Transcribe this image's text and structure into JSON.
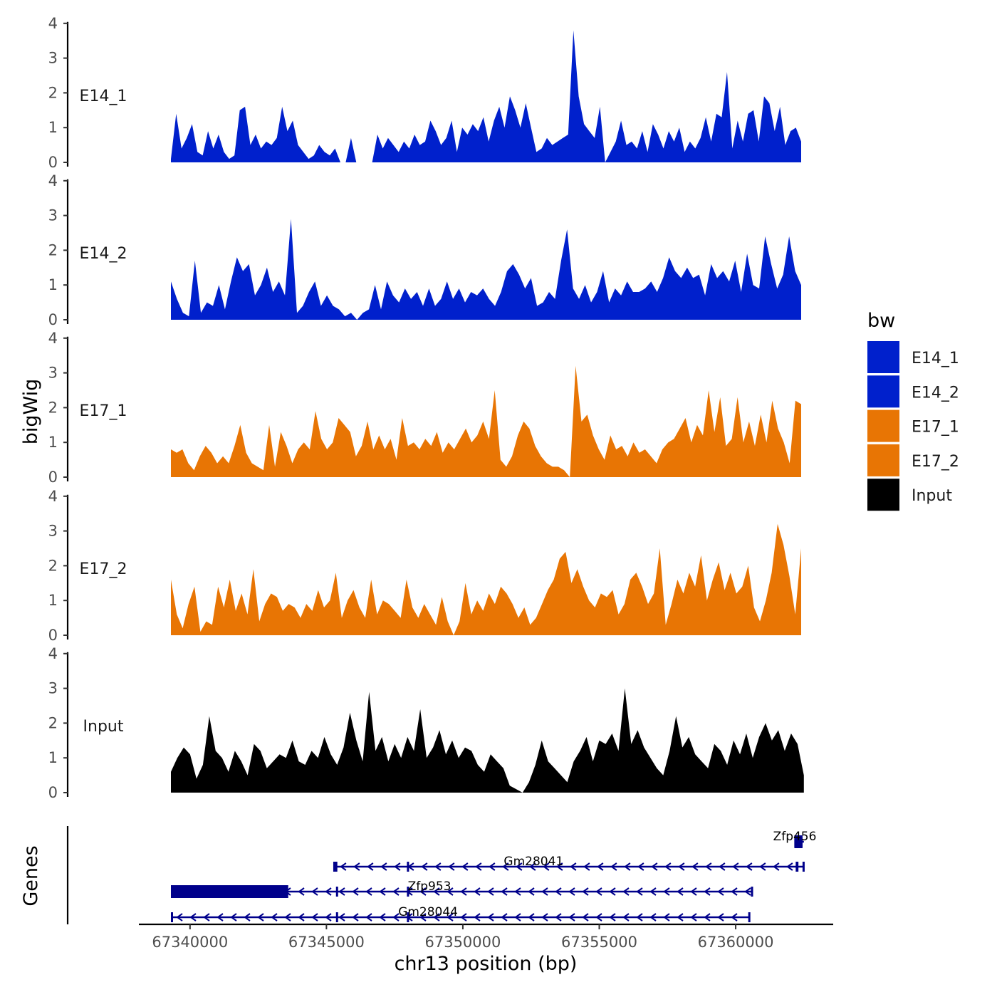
{
  "chart_data": {
    "type": "area",
    "y_axis_title": "bigWig",
    "x_axis_title": "chr13 position (bp)",
    "genes_axis_title": "Genes",
    "x_range": [
      67338500,
      67363500
    ],
    "y_range": [
      0,
      4
    ],
    "y_ticks": [
      "0",
      "1",
      "2",
      "3",
      "4"
    ],
    "x_ticks": [
      {
        "value": 67340000,
        "label": "67340000"
      },
      {
        "value": 67345000,
        "label": "67345000"
      },
      {
        "value": 67350000,
        "label": "67350000"
      },
      {
        "value": 67355000,
        "label": "67355000"
      },
      {
        "value": 67360000,
        "label": "67360000"
      }
    ],
    "legend": {
      "title": "bw",
      "entries": [
        {
          "name": "E14_1",
          "color": "#0020cc"
        },
        {
          "name": "E14_2",
          "color": "#0020cc"
        },
        {
          "name": "E17_1",
          "color": "#e87504"
        },
        {
          "name": "E17_2",
          "color": "#e87504"
        },
        {
          "name": "Input",
          "color": "#000000"
        }
      ]
    },
    "tracks": [
      {
        "name": "E14_1",
        "color": "#0020cc",
        "start": 67339300,
        "end": 67362400,
        "values": [
          0.1,
          1.4,
          0.4,
          0.7,
          1.1,
          0.3,
          0.2,
          0.9,
          0.4,
          0.8,
          0.3,
          0.1,
          0.2,
          1.5,
          1.6,
          0.5,
          0.8,
          0.4,
          0.6,
          0.5,
          0.7,
          1.6,
          0.9,
          1.2,
          0.5,
          0.3,
          0.1,
          0.2,
          0.5,
          0.3,
          0.2,
          0.4,
          0.0,
          0.0,
          0.7,
          0.0,
          0.0,
          0.0,
          0.0,
          0.8,
          0.4,
          0.7,
          0.5,
          0.3,
          0.6,
          0.4,
          0.8,
          0.5,
          0.6,
          1.2,
          0.9,
          0.5,
          0.7,
          1.2,
          0.3,
          1.0,
          0.8,
          1.1,
          0.9,
          1.3,
          0.6,
          1.2,
          1.6,
          1.0,
          1.9,
          1.5,
          1.0,
          1.7,
          1.0,
          0.3,
          0.4,
          0.7,
          0.5,
          0.6,
          0.7,
          0.8,
          3.8,
          1.9,
          1.1,
          0.9,
          0.7,
          1.6,
          0.0,
          0.3,
          0.6,
          1.2,
          0.5,
          0.6,
          0.4,
          0.9,
          0.3,
          1.1,
          0.8,
          0.4,
          0.9,
          0.6,
          1.0,
          0.3,
          0.6,
          0.4,
          0.7,
          1.3,
          0.6,
          1.4,
          1.3,
          2.6,
          0.4,
          1.2,
          0.6,
          1.4,
          1.5,
          0.6,
          1.9,
          1.7,
          0.9,
          1.6,
          0.5,
          0.9,
          1.0,
          0.6
        ]
      },
      {
        "name": "E14_2",
        "color": "#0020cc",
        "start": 67339300,
        "end": 67362400,
        "values": [
          1.1,
          0.6,
          0.2,
          0.1,
          1.7,
          0.2,
          0.5,
          0.4,
          1.0,
          0.3,
          1.1,
          1.8,
          1.4,
          1.6,
          0.7,
          1.0,
          1.5,
          0.8,
          1.1,
          0.7,
          2.9,
          0.2,
          0.4,
          0.8,
          1.1,
          0.4,
          0.7,
          0.4,
          0.3,
          0.1,
          0.2,
          0.0,
          0.2,
          0.3,
          1.0,
          0.3,
          1.1,
          0.7,
          0.5,
          0.9,
          0.6,
          0.8,
          0.4,
          0.9,
          0.4,
          0.6,
          1.1,
          0.6,
          0.9,
          0.5,
          0.8,
          0.7,
          0.9,
          0.6,
          0.4,
          0.8,
          1.4,
          1.6,
          1.3,
          0.9,
          1.2,
          0.4,
          0.5,
          0.8,
          0.6,
          1.7,
          2.6,
          0.9,
          0.6,
          1.0,
          0.5,
          0.8,
          1.4,
          0.5,
          0.9,
          0.7,
          1.1,
          0.8,
          0.8,
          0.9,
          1.1,
          0.8,
          1.2,
          1.8,
          1.4,
          1.2,
          1.5,
          1.2,
          1.3,
          0.7,
          1.6,
          1.2,
          1.4,
          1.1,
          1.7,
          0.8,
          1.9,
          1.0,
          0.9,
          2.4,
          1.6,
          0.9,
          1.3,
          2.4,
          1.4,
          1.0
        ]
      },
      {
        "name": "E17_1",
        "color": "#e87504",
        "start": 67339300,
        "end": 67362400,
        "values": [
          0.8,
          0.7,
          0.8,
          0.4,
          0.2,
          0.6,
          0.9,
          0.7,
          0.4,
          0.6,
          0.4,
          0.9,
          1.5,
          0.7,
          0.4,
          0.3,
          0.2,
          1.5,
          0.3,
          1.3,
          0.9,
          0.4,
          0.8,
          1.0,
          0.8,
          1.9,
          1.1,
          0.8,
          1.0,
          1.7,
          1.5,
          1.3,
          0.6,
          0.9,
          1.6,
          0.8,
          1.2,
          0.8,
          1.1,
          0.5,
          1.7,
          0.9,
          1.0,
          0.8,
          1.1,
          0.9,
          1.3,
          0.7,
          1.0,
          0.8,
          1.1,
          1.4,
          1.0,
          1.2,
          1.6,
          1.1,
          2.5,
          0.5,
          0.3,
          0.6,
          1.2,
          1.6,
          1.4,
          0.9,
          0.6,
          0.4,
          0.3,
          0.3,
          0.2,
          0.0,
          3.2,
          1.6,
          1.8,
          1.2,
          0.8,
          0.5,
          1.2,
          0.8,
          0.9,
          0.6,
          1.0,
          0.7,
          0.8,
          0.6,
          0.4,
          0.8,
          1.0,
          1.1,
          1.4,
          1.7,
          1.0,
          1.5,
          1.2,
          2.5,
          1.3,
          2.3,
          0.9,
          1.1,
          2.3,
          1.0,
          1.6,
          0.9,
          1.8,
          1.0,
          2.2,
          1.4,
          1.0,
          0.4,
          2.2,
          2.1
        ]
      },
      {
        "name": "E17_2",
        "color": "#e87504",
        "start": 67339300,
        "end": 67362400,
        "values": [
          1.6,
          0.6,
          0.2,
          0.9,
          1.4,
          0.1,
          0.4,
          0.3,
          1.4,
          0.8,
          1.6,
          0.7,
          1.2,
          0.6,
          1.9,
          0.4,
          0.9,
          1.2,
          1.1,
          0.7,
          0.9,
          0.8,
          0.5,
          0.9,
          0.7,
          1.3,
          0.8,
          1.0,
          1.8,
          0.5,
          1.0,
          1.3,
          0.8,
          0.5,
          1.6,
          0.6,
          1.0,
          0.9,
          0.7,
          0.5,
          1.6,
          0.8,
          0.5,
          0.9,
          0.6,
          0.3,
          1.1,
          0.4,
          0.0,
          0.4,
          1.5,
          0.6,
          1.0,
          0.7,
          1.2,
          0.9,
          1.4,
          1.2,
          0.9,
          0.5,
          0.8,
          0.3,
          0.5,
          0.9,
          1.3,
          1.6,
          2.2,
          2.4,
          1.5,
          1.9,
          1.4,
          1.0,
          0.8,
          1.2,
          1.1,
          1.3,
          0.6,
          0.9,
          1.6,
          1.8,
          1.4,
          0.9,
          1.2,
          2.5,
          0.3,
          0.9,
          1.6,
          1.2,
          1.8,
          1.4,
          2.3,
          1.0,
          1.6,
          2.1,
          1.3,
          1.8,
          1.2,
          1.4,
          2.0,
          0.8,
          0.4,
          1.0,
          1.8,
          3.2,
          2.6,
          1.7,
          0.6,
          2.5
        ]
      },
      {
        "name": "Input",
        "color": "#000000",
        "start": 67339300,
        "end": 67362500,
        "values": [
          0.6,
          1.0,
          1.3,
          1.1,
          0.4,
          0.8,
          2.2,
          1.2,
          1.0,
          0.6,
          1.2,
          0.9,
          0.5,
          1.4,
          1.2,
          0.7,
          0.9,
          1.1,
          1.0,
          1.5,
          0.9,
          0.8,
          1.2,
          1.0,
          1.6,
          1.1,
          0.8,
          1.3,
          2.3,
          1.5,
          0.9,
          2.9,
          1.2,
          1.6,
          0.9,
          1.4,
          1.0,
          1.6,
          1.2,
          2.4,
          1.0,
          1.3,
          1.8,
          1.1,
          1.5,
          1.0,
          1.3,
          1.2,
          0.8,
          0.6,
          1.1,
          0.9,
          0.7,
          0.2,
          0.1,
          0.0,
          0.3,
          0.8,
          1.5,
          0.9,
          0.7,
          0.5,
          0.3,
          0.9,
          1.2,
          1.6,
          0.9,
          1.5,
          1.4,
          1.7,
          1.2,
          3.0,
          1.4,
          1.8,
          1.3,
          1.0,
          0.7,
          0.5,
          1.2,
          2.2,
          1.3,
          1.6,
          1.1,
          0.9,
          0.7,
          1.4,
          1.2,
          0.8,
          1.5,
          1.1,
          1.7,
          1.0,
          1.6,
          2.0,
          1.5,
          1.8,
          1.2,
          1.7,
          1.4,
          0.5
        ]
      }
    ],
    "genes": [
      {
        "name": "Zfp456",
        "start": 67362200,
        "end": 67362500,
        "strand": "-",
        "row": 0,
        "exons": [
          [
            67362150,
            67362450
          ]
        ],
        "thick": [
          [
            67362150,
            67362450
          ]
        ]
      },
      {
        "name": "Gm28041",
        "start": 67345300,
        "end": 67362500,
        "strand": "-",
        "row": 1,
        "exons": [
          [
            67345250,
            67345400
          ],
          [
            67347950,
            67348000
          ],
          [
            67362200,
            67362300
          ],
          [
            67362450,
            67362500
          ]
        ],
        "thick": []
      },
      {
        "name": "Zfp953",
        "start": 67339300,
        "end": 67360600,
        "strand": "-",
        "row": 2,
        "exons": [
          [
            67345350,
            67345380
          ],
          [
            67347950,
            67348000
          ],
          [
            67360560,
            67360600
          ]
        ],
        "thick": [
          [
            67339300,
            67343600
          ]
        ]
      },
      {
        "name": "Gm28044",
        "start": 67339300,
        "end": 67360500,
        "strand": "-",
        "row": 3,
        "exons": [
          [
            67339300,
            67339350
          ],
          [
            67345350,
            67345380
          ],
          [
            67347950,
            67348000
          ],
          [
            67360460,
            67360500
          ]
        ],
        "thick": []
      }
    ]
  }
}
